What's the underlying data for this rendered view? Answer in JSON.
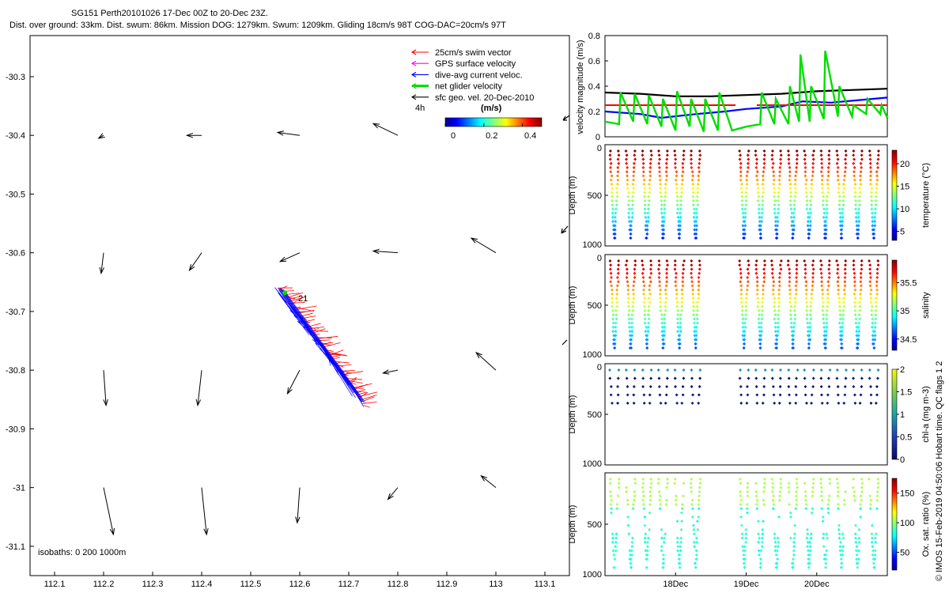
{
  "header": {
    "line1": "SG151 Perth20101026 17-Dec 00Z to 20-Dec 23Z.",
    "line2": "Dist. over ground: 33km. Dist. swum: 86km. Mission DOG: 1279km. Swum: 1209km. Gliding 18cm/s 98T COG-DAC=20cm/s 97T"
  },
  "footer_note": "© IMOS 15-Feb-2019 04:50:06 Hobart time. QC flags 1  2",
  "chart_data": [
    {
      "type": "scatter",
      "name": "track-map",
      "xlim": [
        112.05,
        113.15
      ],
      "ylim": [
        -31.15,
        -30.23
      ],
      "xticks": [
        "112.1",
        "112.2",
        "112.3",
        "112.4",
        "112.5",
        "112.6",
        "112.7",
        "112.8",
        "112.9",
        "113",
        "113.1"
      ],
      "xtick_values": [
        112.1,
        112.2,
        112.3,
        112.4,
        112.5,
        112.6,
        112.7,
        112.8,
        112.9,
        113.0,
        113.1
      ],
      "yticks": [
        "-30.3",
        "-30.4",
        "-30.5",
        "-30.6",
        "-30.7",
        "-30.8",
        "-30.9",
        "-31",
        "-31.1"
      ],
      "ytick_values": [
        -30.3,
        -30.4,
        -30.5,
        -30.6,
        -30.7,
        -30.8,
        -30.9,
        -31.0,
        -31.1
      ],
      "legend": [
        {
          "label": "25cm/s swim vector",
          "color": "#ff0000"
        },
        {
          "label": "GPS surface velocity",
          "color": "#ff00ff"
        },
        {
          "label": "dive-avg current veloc.",
          "color": "#0000ff"
        },
        {
          "label": "net glider velocity",
          "color": "#00dd00"
        },
        {
          "label": "sfc geo. vel. 20-Dec-2010",
          "color": "#000000"
        }
      ],
      "vector_scale_label": "4h",
      "colorbar": {
        "title": "(m/s)",
        "ticks": [
          "0",
          "0.2",
          "0.4"
        ],
        "tick_values": [
          0,
          0.2,
          0.4
        ],
        "range": [
          0,
          0.5
        ]
      },
      "isobaths_label": "isobaths: 0    200  1000m",
      "track_label": "21",
      "track": {
        "start": [
          112.555,
          -30.66
        ],
        "end": [
          112.73,
          -30.86
        ]
      },
      "geo_vectors": [
        {
          "lon": 112.2,
          "lat": -30.4,
          "u": -0.01,
          "v": -0.005
        },
        {
          "lon": 112.4,
          "lat": -30.4,
          "u": -0.03,
          "v": 0.0
        },
        {
          "lon": 112.6,
          "lat": -30.4,
          "u": -0.045,
          "v": 0.005
        },
        {
          "lon": 112.8,
          "lat": -30.4,
          "u": -0.05,
          "v": 0.02
        },
        {
          "lon": 112.2,
          "lat": -30.6,
          "u": -0.005,
          "v": -0.035
        },
        {
          "lon": 112.4,
          "lat": -30.6,
          "u": -0.025,
          "v": -0.03
        },
        {
          "lon": 112.6,
          "lat": -30.6,
          "u": -0.04,
          "v": -0.015
        },
        {
          "lon": 112.8,
          "lat": -30.6,
          "u": -0.05,
          "v": 0.003
        },
        {
          "lon": 113.0,
          "lat": -30.6,
          "u": -0.05,
          "v": 0.025
        },
        {
          "lon": 112.2,
          "lat": -30.8,
          "u": 0.005,
          "v": -0.06
        },
        {
          "lon": 112.4,
          "lat": -30.8,
          "u": -0.008,
          "v": -0.06
        },
        {
          "lon": 112.6,
          "lat": -30.8,
          "u": -0.025,
          "v": -0.04
        },
        {
          "lon": 112.8,
          "lat": -30.8,
          "u": -0.03,
          "v": -0.005
        },
        {
          "lon": 113.0,
          "lat": -30.8,
          "u": -0.04,
          "v": 0.03
        },
        {
          "lon": 112.2,
          "lat": -31.0,
          "u": 0.02,
          "v": -0.08
        },
        {
          "lon": 112.4,
          "lat": -31.0,
          "u": 0.01,
          "v": -0.08
        },
        {
          "lon": 112.6,
          "lat": -31.0,
          "u": -0.005,
          "v": -0.06
        },
        {
          "lon": 112.8,
          "lat": -31.0,
          "u": -0.02,
          "v": -0.02
        },
        {
          "lon": 113.0,
          "lat": -31.0,
          "u": -0.03,
          "v": 0.02
        }
      ]
    },
    {
      "type": "line",
      "name": "velocity-magnitude",
      "ylabel": "velocity magnitude (m/s)",
      "ylim": [
        0,
        0.8
      ],
      "yticks": [
        "0",
        "0.2",
        "0.4",
        "0.6",
        "0.8"
      ],
      "ytick_values": [
        0,
        0.2,
        0.4,
        0.6,
        0.8
      ],
      "xlim": [
        17.0,
        21.0
      ],
      "series": [
        {
          "name": "sfc geo speed",
          "color": "#000000",
          "x": [
            17.0,
            17.5,
            18.0,
            18.5,
            19.0,
            19.5,
            20.0,
            20.5,
            21.0
          ],
          "values": [
            0.35,
            0.34,
            0.32,
            0.32,
            0.33,
            0.34,
            0.36,
            0.37,
            0.38
          ]
        },
        {
          "name": "dive-avg current",
          "color": "#0000ff",
          "x": [
            17.0,
            17.5,
            17.8,
            18.3,
            18.7,
            19.0,
            19.5,
            19.8,
            20.2,
            20.6,
            21.0
          ],
          "values": [
            0.2,
            0.18,
            0.15,
            0.18,
            0.2,
            0.22,
            0.24,
            0.28,
            0.27,
            0.29,
            0.31
          ]
        },
        {
          "name": "swim speed",
          "color": "#ff0000",
          "segments": [
            [
              17.0,
              18.85,
              0.25
            ],
            [
              19.15,
              21.0,
              0.25
            ]
          ]
        },
        {
          "name": "net glider velocity",
          "color": "#00dd00",
          "x": [
            17.0,
            17.2,
            17.22,
            17.4,
            17.42,
            17.6,
            17.62,
            17.8,
            17.82,
            18.0,
            18.02,
            18.2,
            18.22,
            18.4,
            18.42,
            18.6,
            18.62,
            18.8,
            19.0,
            19.2,
            19.22,
            19.4,
            19.42,
            19.6,
            19.62,
            19.75,
            19.77,
            19.9,
            19.92,
            20.1,
            20.12,
            20.3,
            20.32,
            20.5,
            20.52,
            20.7,
            20.72,
            20.9,
            20.92,
            21.0
          ],
          "values": [
            0.12,
            0.1,
            0.35,
            0.12,
            0.34,
            0.1,
            0.33,
            0.08,
            0.3,
            0.05,
            0.36,
            0.08,
            0.3,
            0.04,
            0.3,
            0.05,
            0.35,
            0.05,
            0.08,
            0.1,
            0.35,
            0.1,
            0.3,
            0.1,
            0.4,
            0.12,
            0.65,
            0.12,
            0.4,
            0.14,
            0.68,
            0.16,
            0.4,
            0.16,
            0.25,
            0.18,
            0.3,
            0.18,
            0.25,
            0.15
          ]
        }
      ]
    },
    {
      "type": "scatter",
      "name": "temperature-section",
      "ylabel": "Depth (m)",
      "ylim": [
        1000,
        0
      ],
      "yticks": [
        "0",
        "500",
        "1000"
      ],
      "ytick_values": [
        0,
        500,
        1000
      ],
      "colorbar": {
        "label": "temperature (°C)",
        "ticks": [
          "5",
          "10",
          "15",
          "20"
        ],
        "tick_values": [
          5,
          10,
          15,
          20
        ],
        "range": [
          3,
          23
        ]
      }
    },
    {
      "type": "scatter",
      "name": "salinity-section",
      "ylabel": "Depth (m)",
      "ylim": [
        1000,
        0
      ],
      "yticks": [
        "0",
        "500",
        "1000"
      ],
      "ytick_values": [
        0,
        500,
        1000
      ],
      "colorbar": {
        "label": "salinity",
        "ticks": [
          "34.5",
          "35",
          "35.5"
        ],
        "tick_values": [
          34.5,
          35,
          35.5
        ],
        "range": [
          34.3,
          35.9
        ]
      }
    },
    {
      "type": "scatter",
      "name": "chlorophyll-section",
      "ylabel": "Depth (m)",
      "ylim": [
        1000,
        0
      ],
      "yticks": [
        "0",
        "500",
        "1000"
      ],
      "ytick_values": [
        0,
        500,
        1000
      ],
      "colorbar": {
        "label": "chl-a (mg m-3)",
        "ticks": [
          "0",
          "0.5",
          "1",
          "1.5",
          "2"
        ],
        "tick_values": [
          0,
          0.5,
          1,
          1.5,
          2
        ],
        "range": [
          0,
          2
        ]
      }
    },
    {
      "type": "scatter",
      "name": "oxygen-section",
      "ylabel": "Depth (m)",
      "ylim": [
        1000,
        0
      ],
      "yticks": [
        "500",
        "1000"
      ],
      "ytick_values": [
        500,
        1000
      ],
      "colorbar": {
        "label": "Ox. sat. ratio (%)",
        "ticks": [
          "50",
          "100",
          "150"
        ],
        "tick_values": [
          50,
          100,
          150
        ],
        "range": [
          20,
          175
        ]
      },
      "xticks": [
        "18Dec",
        "19Dec",
        "20Dec"
      ],
      "xtick_values": [
        18,
        19,
        20
      ]
    }
  ]
}
